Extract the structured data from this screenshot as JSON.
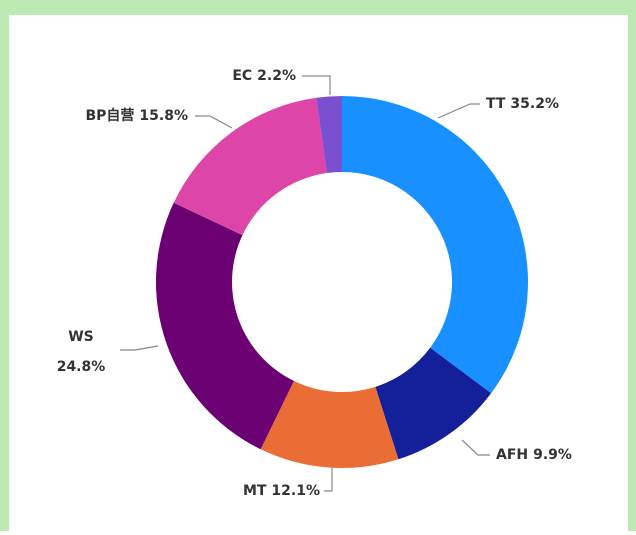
{
  "chart_data": {
    "type": "donut",
    "categories": [
      "TT",
      "AFH",
      "MT",
      "WS",
      "BP自营",
      "EC"
    ],
    "values": [
      35.2,
      9.9,
      12.1,
      24.8,
      15.8,
      2.2
    ],
    "value_labels": [
      "35.2%",
      "9.9%",
      "12.1%",
      "24.8%",
      "15.8%",
      "2.2%"
    ],
    "colors": [
      "#1890ff",
      "#13209a",
      "#e96d35",
      "#6a0072",
      "#dd46a8",
      "#7a4fd0"
    ]
  }
}
